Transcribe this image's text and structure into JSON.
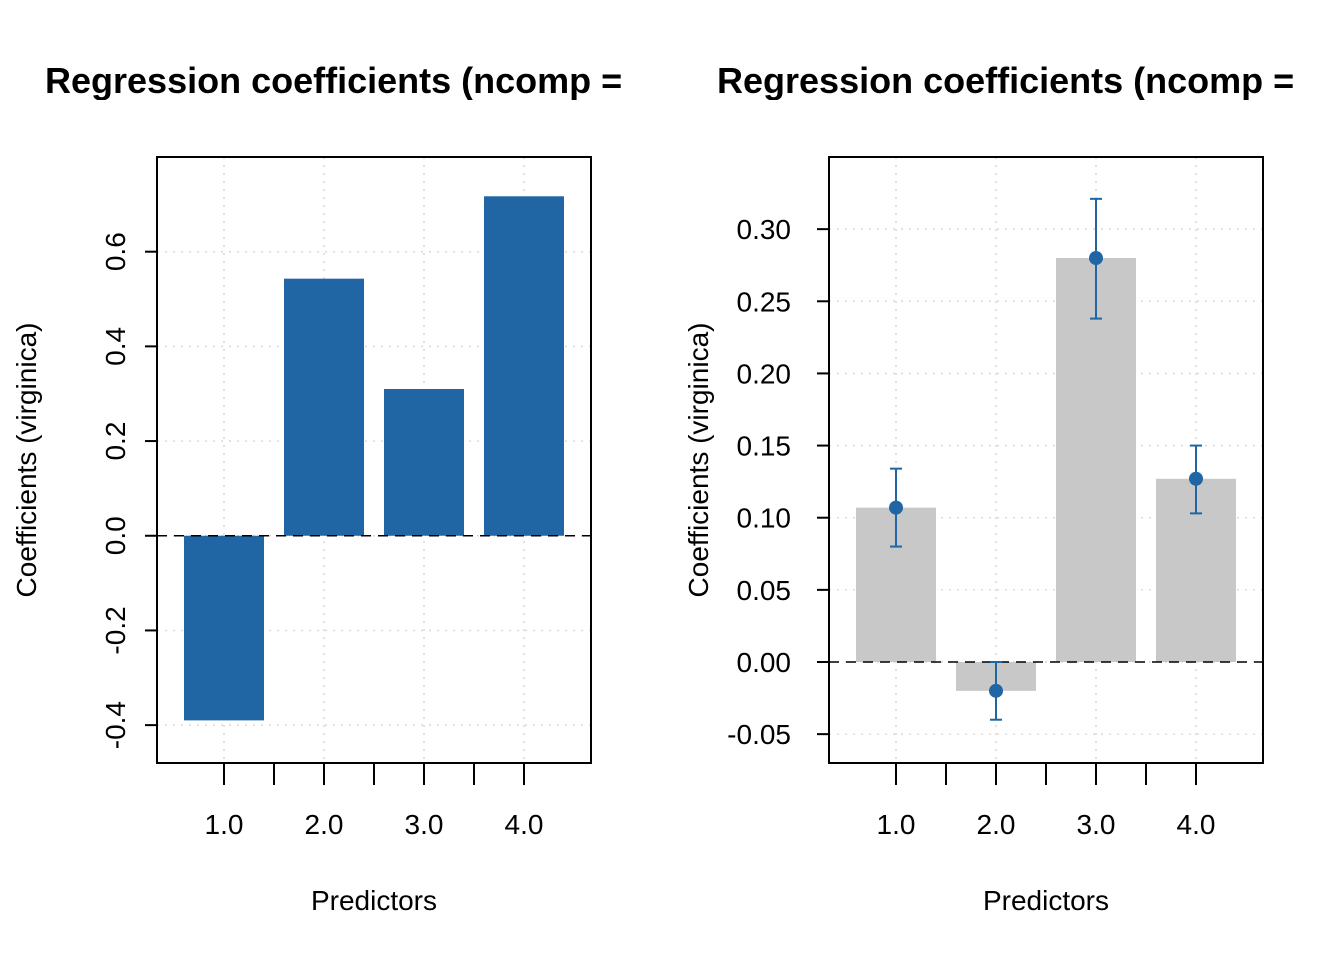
{
  "chart_data": [
    {
      "type": "bar",
      "title": "Regression coefficients (ncomp = ",
      "xlabel": "Predictors",
      "ylabel": "Coefficients (virginica)",
      "categories": [
        "1.0",
        "2.0",
        "3.0",
        "4.0"
      ],
      "series": [
        {
          "values": [
            -0.39,
            0.543,
            0.31,
            0.717
          ]
        }
      ],
      "ylim": [
        -0.48,
        0.8
      ],
      "yticks": [
        "-0.4",
        "-0.2",
        "0.0",
        "0.2",
        "0.4",
        "0.6"
      ],
      "grid": true,
      "bar_color": "#2066a4"
    },
    {
      "type": "bar",
      "title": "Regression coefficients (ncomp = ",
      "xlabel": "Predictors",
      "ylabel": "Coefficients (virginica)",
      "categories": [
        "1.0",
        "2.0",
        "3.0",
        "4.0"
      ],
      "series": [
        {
          "values": [
            0.107,
            -0.02,
            0.28,
            0.127
          ]
        }
      ],
      "error_bars": {
        "lower": [
          0.08,
          -0.04,
          0.238,
          0.103
        ],
        "upper": [
          0.134,
          0.0,
          0.321,
          0.15
        ]
      },
      "ylim": [
        -0.07,
        0.35
      ],
      "yticks": [
        "-0.05",
        "0.00",
        "0.05",
        "0.10",
        "0.15",
        "0.20",
        "0.25",
        "0.30"
      ],
      "grid": true,
      "bar_color": "#c8c8c8",
      "point_color": "#2066a4"
    }
  ]
}
